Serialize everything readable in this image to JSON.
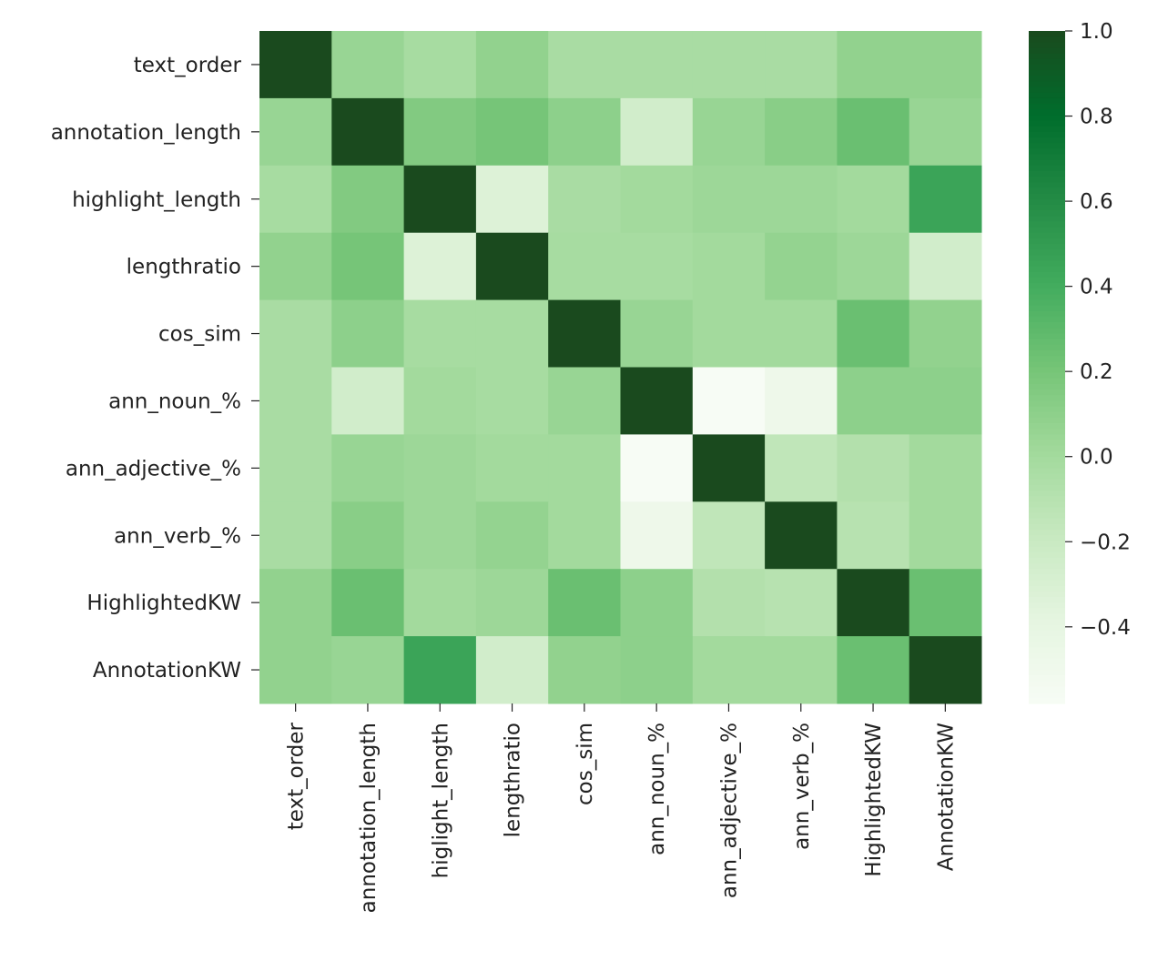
{
  "chart_data": {
    "type": "heatmap",
    "colormap": "Greens",
    "row_labels": [
      "text_order",
      "annotation_length",
      "highlight_length",
      "lengthratio",
      "cos_sim",
      "ann_noun_%",
      "ann_adjective_%",
      "ann_verb_%",
      "HighlightedKW",
      "AnnotationKW"
    ],
    "col_labels": [
      "text_order",
      "annotation_length",
      "higlight_length",
      "lengthratio",
      "cos_sim",
      "ann_noun_%",
      "ann_adjective_%",
      "ann_verb_%",
      "HighlightedKW",
      "AnnotationKW"
    ],
    "values": [
      [
        1.0,
        0.05,
        -0.02,
        0.08,
        -0.03,
        -0.03,
        -0.03,
        -0.03,
        0.08,
        0.08
      ],
      [
        0.05,
        1.0,
        0.15,
        0.2,
        0.1,
        -0.25,
        0.05,
        0.12,
        0.25,
        0.05
      ],
      [
        -0.02,
        0.15,
        1.0,
        -0.33,
        -0.03,
        0.0,
        0.03,
        0.03,
        0.0,
        0.45
      ],
      [
        0.08,
        0.2,
        -0.33,
        1.0,
        -0.02,
        -0.02,
        0.0,
        0.07,
        0.03,
        -0.25
      ],
      [
        -0.03,
        0.1,
        -0.02,
        -0.02,
        1.0,
        0.05,
        0.0,
        0.0,
        0.25,
        0.08
      ],
      [
        -0.03,
        -0.25,
        0.0,
        -0.02,
        0.05,
        1.0,
        -0.58,
        -0.48,
        0.1,
        0.1
      ],
      [
        -0.03,
        0.05,
        0.03,
        0.0,
        0.0,
        -0.58,
        1.0,
        -0.15,
        -0.08,
        0.0
      ],
      [
        -0.03,
        0.12,
        0.03,
        0.07,
        0.0,
        -0.48,
        -0.15,
        1.0,
        -0.1,
        0.0
      ],
      [
        0.08,
        0.25,
        0.0,
        0.03,
        0.25,
        0.1,
        -0.08,
        -0.1,
        1.0,
        0.25
      ],
      [
        0.08,
        0.05,
        0.45,
        -0.25,
        0.08,
        0.1,
        0.0,
        0.0,
        0.25,
        1.0
      ]
    ],
    "vmin": -0.58,
    "vmax": 1.0,
    "colorbar_ticks": [
      1.0,
      0.8,
      0.6,
      0.4,
      0.2,
      0.0,
      -0.2,
      -0.4
    ],
    "colorbar_tick_labels": [
      "1.0",
      "0.8",
      "0.6",
      "0.4",
      "0.2",
      "0.0",
      "−0.2",
      "−0.4"
    ]
  }
}
